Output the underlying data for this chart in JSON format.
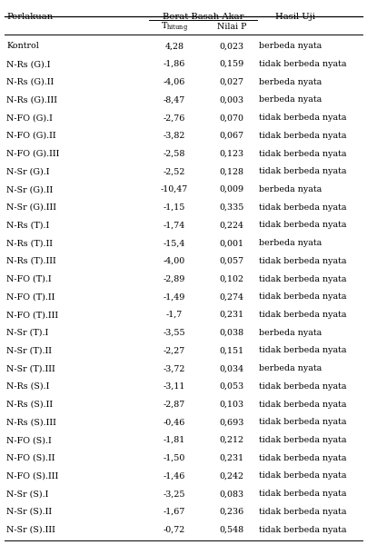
{
  "col_header_group": "Berat Basah Akar",
  "col_sub1": "T",
  "col_sub1_sub": "hitung",
  "col_sub2": "Nilai P",
  "col_h1": "Perlakuan",
  "col_h4": "Hasil Uji",
  "rows": [
    [
      "Kontrol",
      "4,28",
      "0,023",
      "berbeda nyata"
    ],
    [
      "N-Rs (G).I",
      "-1,86",
      "0,159",
      "tidak berbeda nyata"
    ],
    [
      "N-Rs (G).II",
      "-4,06",
      "0,027",
      "berbeda nyata"
    ],
    [
      "N-Rs (G).III",
      "-8,47",
      "0,003",
      "berbeda nyata"
    ],
    [
      "N-FO (G).I",
      "-2,76",
      "0,070",
      "tidak berbeda nyata"
    ],
    [
      "N-FO (G).II",
      "-3,82",
      "0,067",
      "tidak berbeda nyata"
    ],
    [
      "N-FO (G).III",
      "-2,58",
      "0,123",
      "tidak berbeda nyata"
    ],
    [
      "N-Sr (G).I",
      "-2,52",
      "0,128",
      "tidak berbeda nyata"
    ],
    [
      "N-Sr (G).II",
      "-10,47",
      "0,009",
      "berbeda nyata"
    ],
    [
      "N-Sr (G).III",
      "-1,15",
      "0,335",
      "tidak berbeda nyata"
    ],
    [
      "N-Rs (T).I",
      "-1,74",
      "0,224",
      "tidak berbeda nyata"
    ],
    [
      "N-Rs (T).II",
      "-15,4",
      "0,001",
      "berbeda nyata"
    ],
    [
      "N-Rs (T).III",
      "-4,00",
      "0,057",
      "tidak berbeda nyata"
    ],
    [
      "N-FO (T).I",
      "-2,89",
      "0,102",
      "tidak berbeda nyata"
    ],
    [
      "N-FO (T).II",
      "-1,49",
      "0,274",
      "tidak berbeda nyata"
    ],
    [
      "N-FO (T).III",
      "-1,7",
      "0,231",
      "tidak berbeda nyata"
    ],
    [
      "N-Sr (T).I",
      "-3,55",
      "0,038",
      "berbeda nyata"
    ],
    [
      "N-Sr (T).II",
      "-2,27",
      "0,151",
      "tidak berbeda nyata"
    ],
    [
      "N-Sr (T).III",
      "-3,72",
      "0,034",
      "berbeda nyata"
    ],
    [
      "N-Rs (S).I",
      "-3,11",
      "0,053",
      "tidak berbeda nyata"
    ],
    [
      "N-Rs (S).II",
      "-2,87",
      "0,103",
      "tidak berbeda nyata"
    ],
    [
      "N-Rs (S).III",
      "-0,46",
      "0,693",
      "tidak berbeda nyata"
    ],
    [
      "N-FO (S).I",
      "-1,81",
      "0,212",
      "tidak berbeda nyata"
    ],
    [
      "N-FO (S).II",
      "-1,50",
      "0,231",
      "tidak berbeda nyata"
    ],
    [
      "N-FO (S).III",
      "-1,46",
      "0,242",
      "tidak berbeda nyata"
    ],
    [
      "N-Sr (S).I",
      "-3,25",
      "0,083",
      "tidak berbeda nyata"
    ],
    [
      "N-Sr (S).II",
      "-1,67",
      "0,236",
      "tidak berbeda nyata"
    ],
    [
      "N-Sr (S).III",
      "-0,72",
      "0,548",
      "tidak berbeda nyata"
    ]
  ],
  "bg_color": "#ffffff",
  "text_color": "#000000",
  "font_size": 6.8,
  "header_font_size": 7.2
}
